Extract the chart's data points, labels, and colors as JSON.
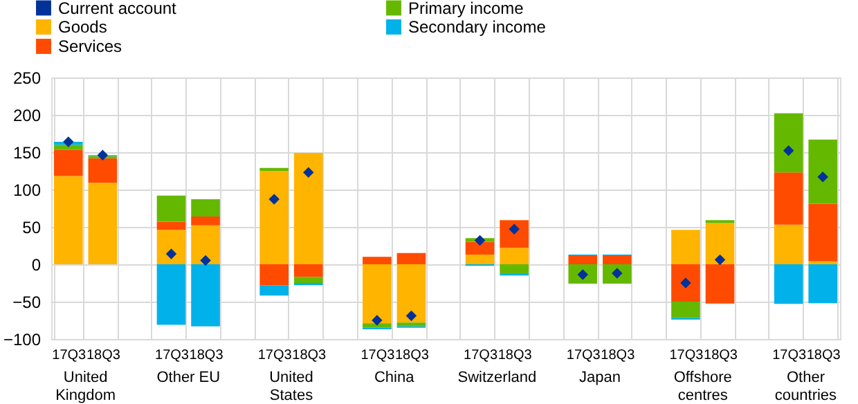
{
  "chart_data": {
    "type": "bar",
    "stacked": true,
    "categories": [
      "17Q3",
      "18Q3",
      null,
      "17Q3",
      "18Q3",
      null,
      "17Q3",
      "18Q3",
      null,
      "17Q3",
      "18Q3",
      null,
      "17Q3",
      "18Q3",
      null,
      "17Q3",
      "18Q3",
      null,
      "17Q3",
      "18Q3",
      null,
      "17Q3",
      "18Q3"
    ],
    "series": [
      {
        "name": "Goods",
        "color": "#ffb400",
        "values": [
          118,
          109,
          null,
          46,
          52,
          null,
          125,
          149,
          null,
          -79,
          -78,
          null,
          13,
          22,
          null,
          0,
          0,
          null,
          46,
          55,
          null,
          53,
          4
        ]
      },
      {
        "name": "Services",
        "color": "#ff4b00",
        "values": [
          35,
          33,
          null,
          11,
          12,
          null,
          -28,
          -17,
          null,
          10,
          15,
          null,
          17,
          37,
          null,
          12,
          12,
          null,
          -50,
          -52,
          null,
          70,
          77
        ]
      },
      {
        "name": "Primary income",
        "color": "#65b800",
        "values": [
          7,
          3,
          null,
          35,
          23,
          null,
          4,
          -8,
          null,
          -6,
          -5,
          null,
          5,
          -13,
          null,
          -26,
          -26,
          null,
          -22,
          4,
          null,
          79,
          86
        ]
      },
      {
        "name": "Secondary income",
        "color": "#00b1ea",
        "values": [
          4,
          1,
          null,
          -81,
          -83,
          null,
          -14,
          -3,
          null,
          -2,
          -2,
          null,
          -2,
          -2,
          null,
          1,
          1,
          null,
          -2,
          -1,
          null,
          -53,
          -52
        ]
      },
      {
        "name": "Current account",
        "type": "scatter",
        "marker": "diamond",
        "color": "#003299",
        "values": [
          164,
          146,
          null,
          14,
          5,
          null,
          87,
          123,
          null,
          -75,
          -69,
          null,
          32,
          47,
          null,
          -14,
          -12,
          null,
          -25,
          6,
          null,
          152,
          117
        ]
      }
    ],
    "annotations": [
      "United\nKingdom",
      "Other EU",
      "United\nStates",
      "China",
      "Switzerland",
      "Japan",
      "Offshore\ncentres",
      "Other\ncountries"
    ],
    "ylim": [
      -100,
      250
    ],
    "yticks": [
      -100,
      -50,
      0,
      50,
      100,
      150,
      200,
      250
    ],
    "grid": true,
    "legend": "top left"
  }
}
